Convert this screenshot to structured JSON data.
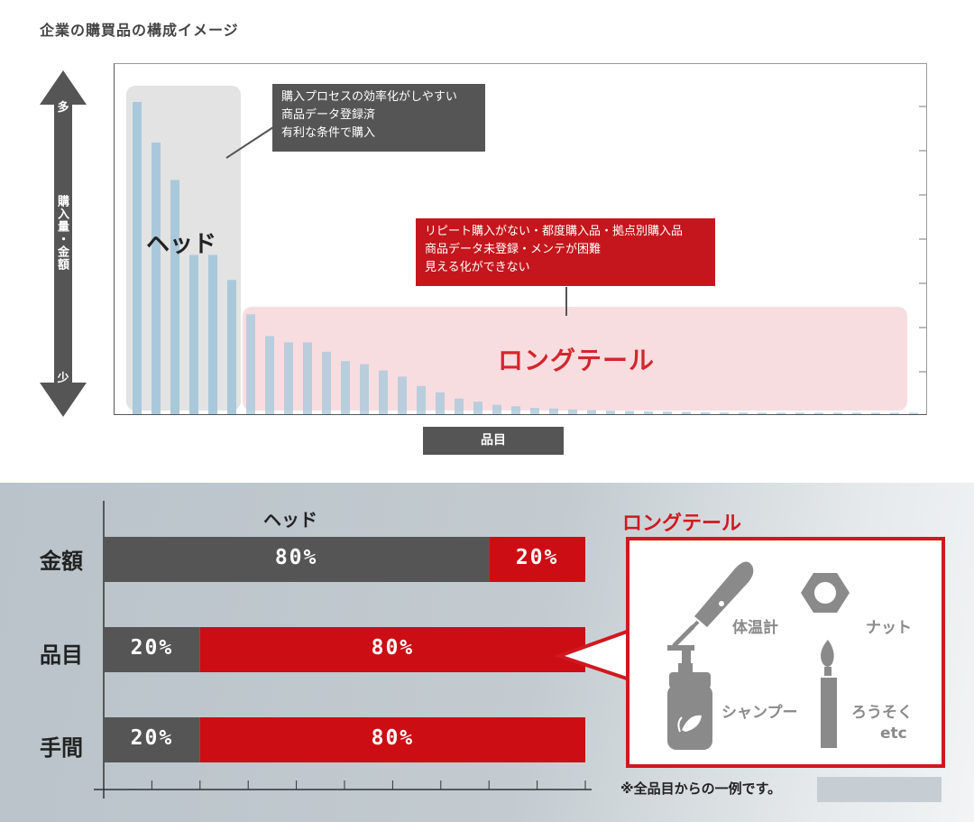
{
  "title": "企業の購買品の構成イメージ",
  "chart_data": [
    {
      "type": "bar",
      "title": "",
      "xlabel": "品目",
      "ylabel": "購入量・金額",
      "y_top_label": "多",
      "y_bottom_label": "少",
      "grid": false,
      "values": [
        100,
        87,
        75,
        51,
        51,
        43,
        32,
        25,
        23,
        23,
        20,
        17,
        16,
        14,
        12,
        9,
        7,
        5,
        4,
        3,
        2.5,
        2,
        1.8,
        1.5,
        1.3,
        1.1,
        1.0,
        0.9,
        0.8,
        0.7,
        0.6,
        0.5,
        0.5,
        0.4,
        0.4,
        0.3,
        0.3,
        0.2,
        0.2,
        0.2,
        0.1,
        0.1,
        0.1
      ],
      "annotations": {
        "head": {
          "label": "ヘッド",
          "callout": [
            "購入プロセスの効率化がしやすい",
            "商品データ登録済",
            "有利な条件で購入"
          ]
        },
        "long_tail": {
          "label": "ロングテール",
          "callout": [
            "リピート購入がない・都度購入品・拠点別購入品",
            "商品データ未登録・メンテが困難",
            "見える化ができない"
          ]
        }
      }
    },
    {
      "type": "bar",
      "orientation": "horizontal",
      "stacked": true,
      "categories": [
        "金額",
        "品目",
        "手間"
      ],
      "series": [
        {
          "name": "ヘッド",
          "values": [
            80,
            20,
            20
          ],
          "labels": [
            "80%",
            "20%",
            "20%"
          ],
          "color": "#555555"
        },
        {
          "name": "ロングテール",
          "values": [
            20,
            80,
            80
          ],
          "labels": [
            "20%",
            "80%",
            "80%"
          ],
          "color": "#cc0d14"
        }
      ],
      "xlim": [
        0,
        100
      ]
    }
  ],
  "long_tail_examples": {
    "items": [
      "体温計",
      "ナット",
      "シャンプー",
      "ろうそく",
      "etc"
    ],
    "icons": [
      "thermometer-icon",
      "nut-icon",
      "shampoo-bottle-icon",
      "candle-icon"
    ]
  },
  "note": "※全品目からの一例です。",
  "colors": {
    "head_bar": "#a9c9db",
    "head_region": "#e3e3e3",
    "tail_region": "#f8dde0",
    "accent_red": "#c4161c",
    "dark": "#555555"
  }
}
